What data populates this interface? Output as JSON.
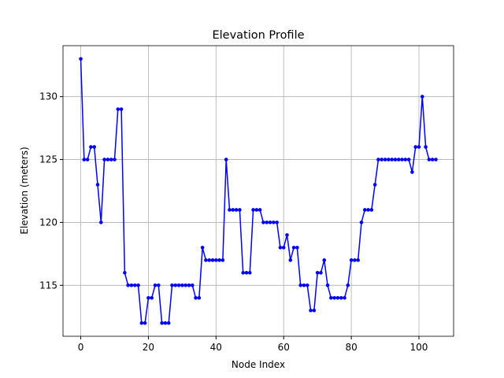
{
  "chart_data": {
    "type": "line",
    "title": "Elevation Profile",
    "x_label": "Node Index",
    "y_label": "Elevation (meters)",
    "x": [
      0,
      1,
      2,
      3,
      4,
      5,
      6,
      7,
      8,
      9,
      10,
      11,
      12,
      13,
      14,
      15,
      16,
      17,
      18,
      19,
      20,
      21,
      22,
      23,
      24,
      25,
      26,
      27,
      28,
      29,
      30,
      31,
      32,
      33,
      34,
      35,
      36,
      37,
      38,
      39,
      40,
      41,
      42,
      43,
      44,
      45,
      46,
      47,
      48,
      49,
      50,
      51,
      52,
      53,
      54,
      55,
      56,
      57,
      58,
      59,
      60,
      61,
      62,
      63,
      64,
      65,
      66,
      67,
      68,
      69,
      70,
      71,
      72,
      73,
      74,
      75,
      76,
      77,
      78,
      79,
      80,
      81,
      82,
      83,
      84,
      85,
      86,
      87,
      88,
      89,
      90,
      91,
      92,
      93,
      94,
      95,
      96,
      97,
      98,
      99,
      100,
      101,
      102,
      103,
      104,
      105
    ],
    "series": [
      {
        "color": "#0000ff",
        "values": [
          133,
          125,
          125,
          126,
          126,
          123,
          120,
          125,
          125,
          125,
          125,
          129,
          129,
          116,
          115,
          115,
          115,
          115,
          112,
          112,
          114,
          114,
          115,
          115,
          112,
          112,
          112,
          115,
          115,
          115,
          115,
          115,
          115,
          115,
          114,
          114,
          118,
          117,
          117,
          117,
          117,
          117,
          117,
          125,
          121,
          121,
          121,
          121,
          116,
          116,
          116,
          121,
          121,
          121,
          120,
          120,
          120,
          120,
          120,
          118,
          118,
          119,
          117,
          118,
          118,
          115,
          115,
          115,
          113,
          113,
          116,
          116,
          117,
          115,
          114,
          114,
          114,
          114,
          114,
          115,
          117,
          117,
          117,
          120,
          121,
          121,
          121,
          123,
          125,
          125,
          125,
          125,
          125,
          125,
          125,
          125,
          125,
          125,
          124,
          126,
          126,
          130,
          126,
          125,
          125,
          125
        ]
      }
    ],
    "xlim": [
      -5.25,
      110.25
    ],
    "ylim": [
      110.95,
      134.05
    ],
    "xticks": [
      0,
      20,
      40,
      60,
      80,
      100
    ],
    "yticks": [
      115,
      120,
      125,
      130
    ],
    "grid": true
  }
}
